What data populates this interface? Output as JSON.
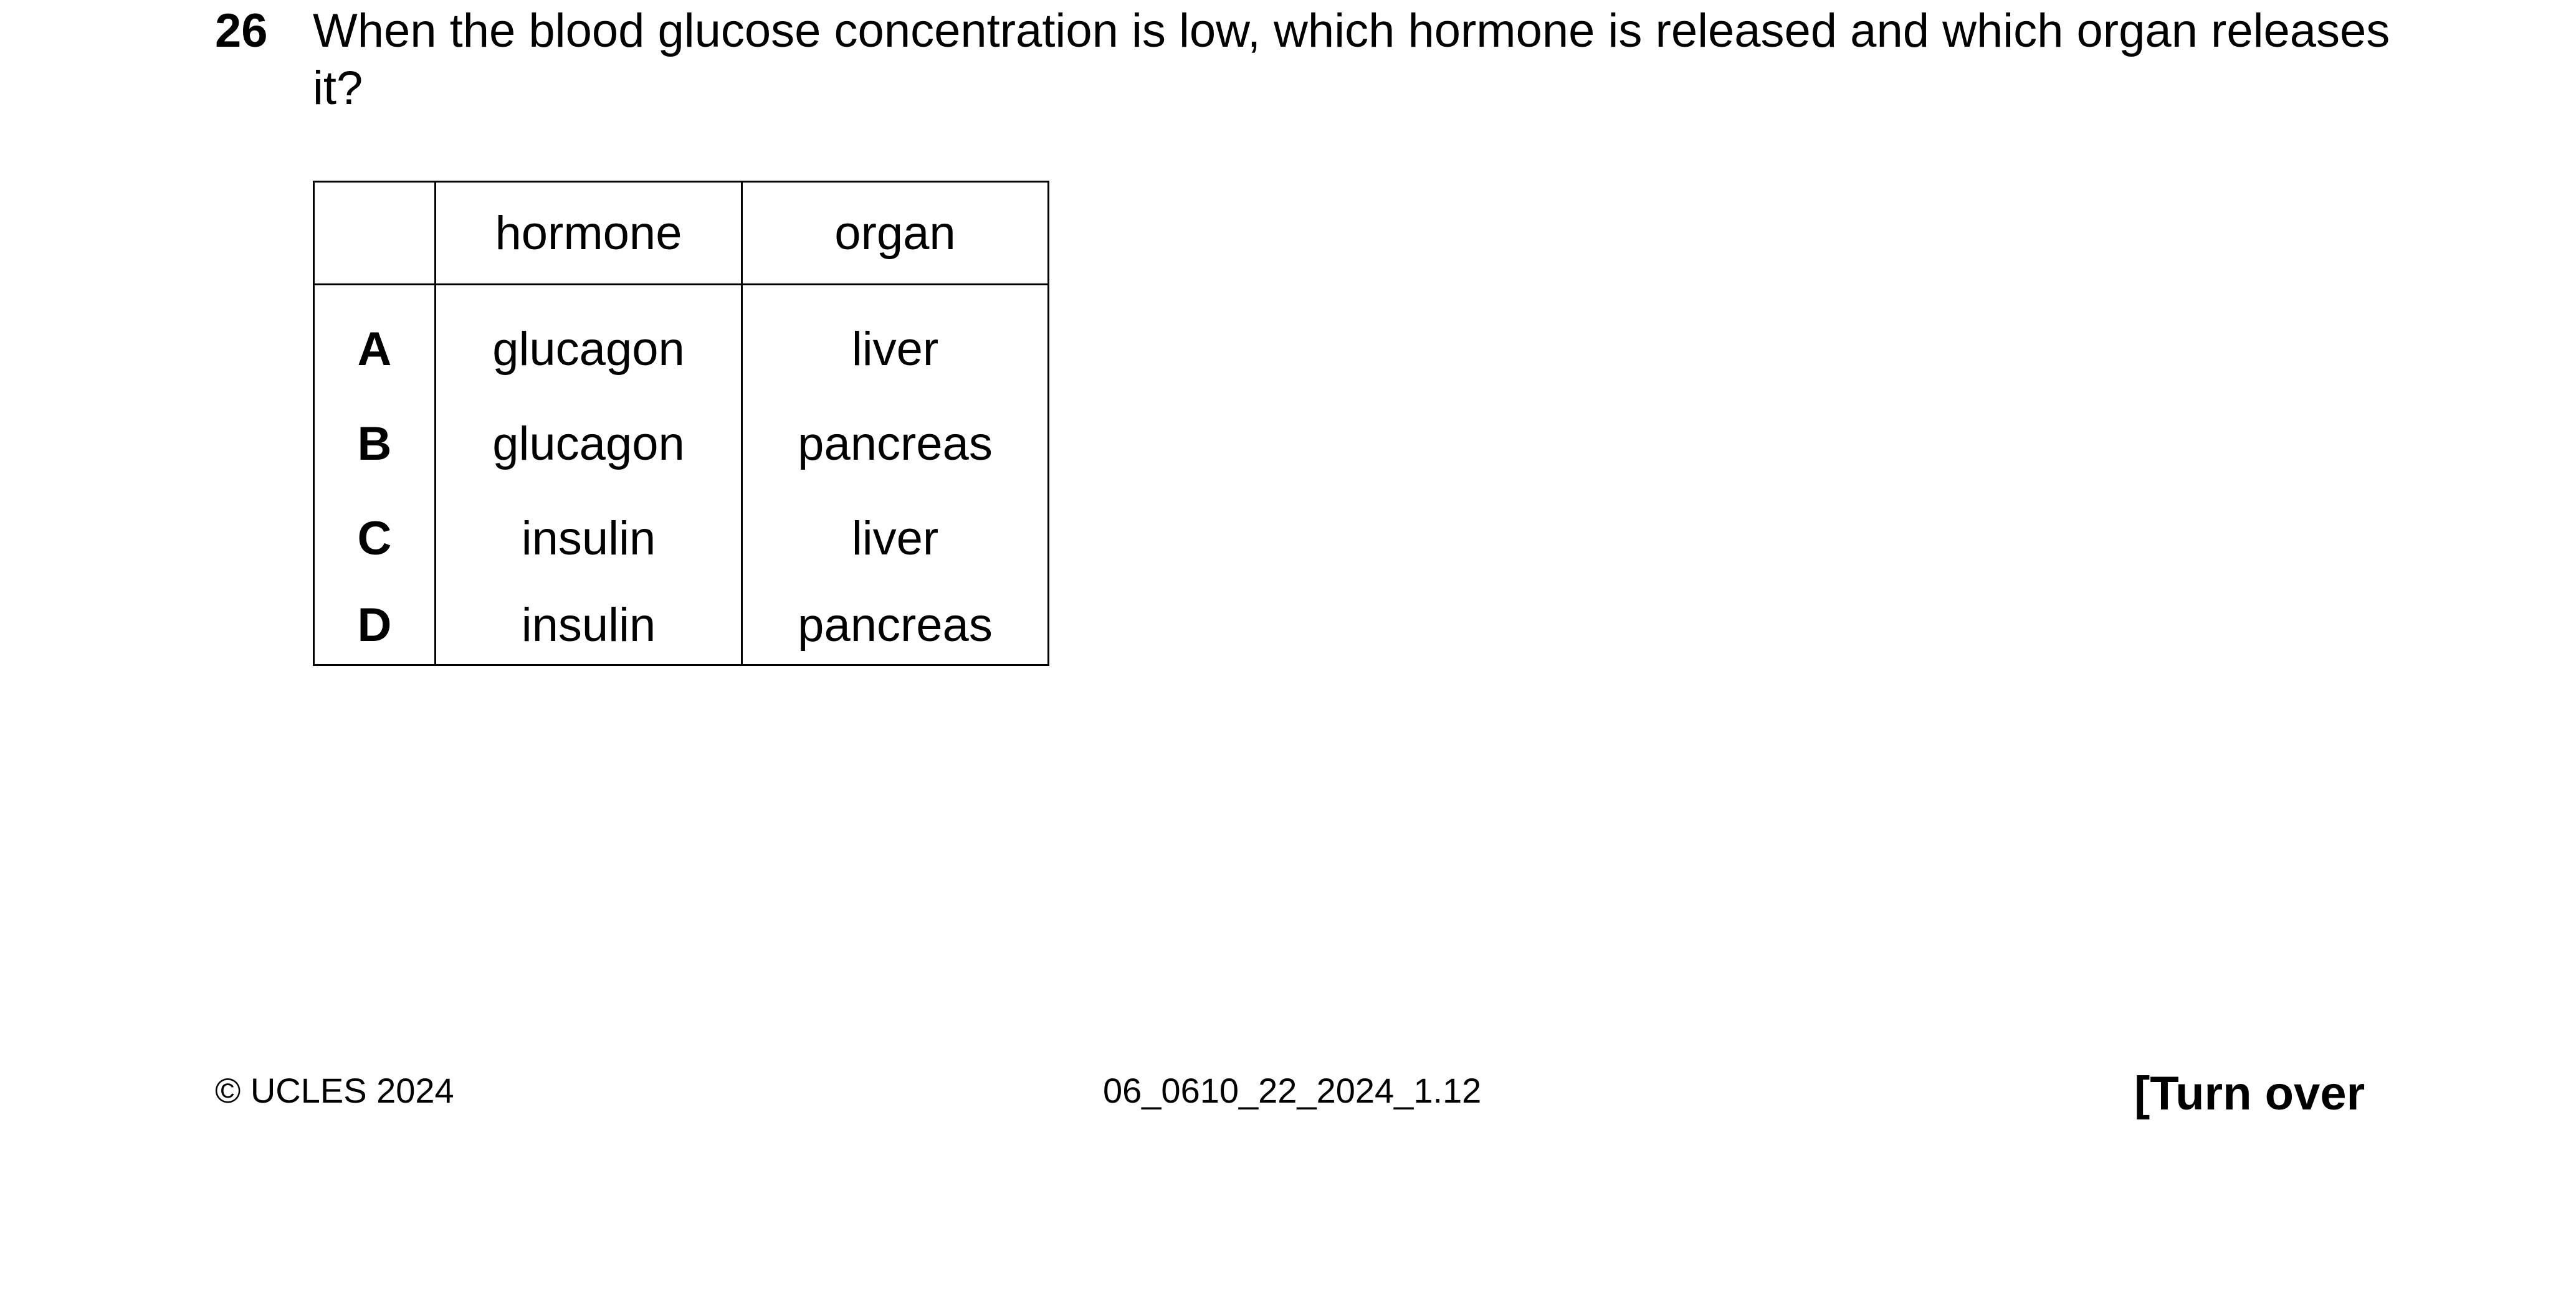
{
  "question": {
    "number": "26",
    "text": "When the blood glucose concentration is low, which hormone is released and which organ releases it?"
  },
  "table": {
    "headers": [
      "",
      "hormone",
      "organ"
    ],
    "rows": [
      {
        "letter": "A",
        "hormone": "glucagon",
        "organ": "liver"
      },
      {
        "letter": "B",
        "hormone": "glucagon",
        "organ": "pancreas"
      },
      {
        "letter": "C",
        "hormone": "insulin",
        "organ": "liver"
      },
      {
        "letter": "D",
        "hormone": "insulin",
        "organ": "pancreas"
      }
    ]
  },
  "footer": {
    "copyright": "© UCLES 2024",
    "code": "06_0610_22_2024_1.12",
    "turn_over": "[Turn over"
  }
}
